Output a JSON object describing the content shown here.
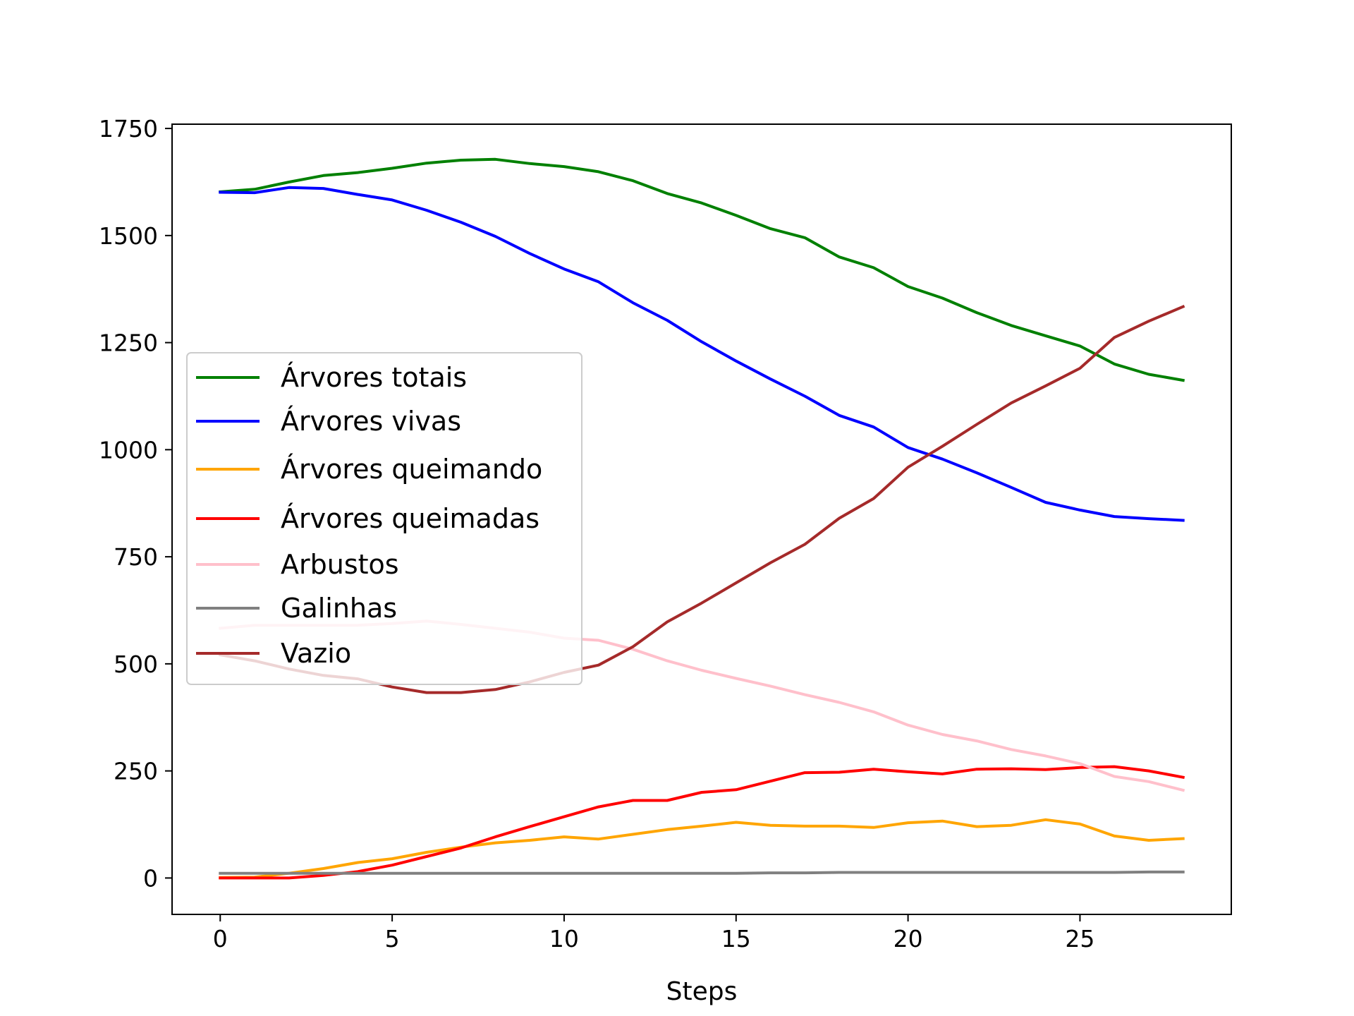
{
  "chart_data": {
    "type": "line",
    "xlabel": "Steps",
    "ylabel": "",
    "xlim": [
      -1.4,
      29.4
    ],
    "ylim": [
      -85,
      1760
    ],
    "xticks": [
      0,
      5,
      10,
      15,
      20,
      25
    ],
    "yticks": [
      0,
      250,
      500,
      750,
      1000,
      1250,
      1500,
      1750
    ],
    "grid": false,
    "legend_position": "center-left",
    "x": [
      0,
      1,
      2,
      3,
      4,
      5,
      6,
      7,
      8,
      9,
      10,
      11,
      12,
      13,
      14,
      15,
      16,
      17,
      18,
      19,
      20,
      21,
      22,
      23,
      24,
      25,
      26,
      27,
      28
    ],
    "series": [
      {
        "name": "Árvores totais",
        "color": "#008000",
        "values": [
          1602,
          1608,
          1625,
          1640,
          1647,
          1657,
          1669,
          1676,
          1678,
          1668,
          1661,
          1649,
          1628,
          1598,
          1576,
          1547,
          1516,
          1495,
          1450,
          1425,
          1381,
          1354,
          1320,
          1290,
          1266,
          1242,
          1200,
          1176,
          1162
        ]
      },
      {
        "name": "Árvores vivas",
        "color": "#0000ff",
        "values": [
          1601,
          1600,
          1612,
          1610,
          1596,
          1583,
          1559,
          1531,
          1498,
          1458,
          1422,
          1392,
          1343,
          1302,
          1252,
          1207,
          1165,
          1125,
          1080,
          1053,
          1005,
          978,
          946,
          912,
          877,
          859,
          844,
          839,
          835
        ]
      },
      {
        "name": "Árvores queimando",
        "color": "#ffa500",
        "values": [
          1,
          2,
          11,
          22,
          36,
          45,
          60,
          72,
          82,
          88,
          96,
          91,
          102,
          113,
          121,
          130,
          123,
          121,
          121,
          118,
          129,
          133,
          120,
          123,
          136,
          126,
          98,
          88,
          92
        ]
      },
      {
        "name": "Árvores queimadas",
        "color": "#ff0000",
        "values": [
          0,
          0,
          0,
          6,
          15,
          30,
          50,
          70,
          96,
          120,
          143,
          166,
          181,
          181,
          200,
          206,
          226,
          246,
          247,
          254,
          248,
          243,
          254,
          255,
          253,
          258,
          260,
          250,
          235
        ]
      },
      {
        "name": "Arbustos",
        "color": "#ffc0cb",
        "values": [
          583,
          590,
          590,
          590,
          590,
          594,
          600,
          592,
          583,
          574,
          560,
          555,
          534,
          507,
          485,
          466,
          448,
          428,
          410,
          388,
          357,
          335,
          320,
          300,
          285,
          267,
          237,
          225,
          205
        ]
      },
      {
        "name": "Galinhas",
        "color": "#808080",
        "values": [
          11,
          11,
          11,
          11,
          11,
          11,
          11,
          11,
          11,
          11,
          11,
          11,
          11,
          11,
          11,
          11,
          12,
          12,
          13,
          13,
          13,
          13,
          13,
          13,
          13,
          13,
          13,
          14,
          14
        ]
      },
      {
        "name": "Vazio",
        "color": "#a52a2a",
        "values": [
          521,
          507,
          488,
          473,
          465,
          446,
          433,
          433,
          440,
          458,
          480,
          497,
          540,
          598,
          642,
          689,
          736,
          779,
          840,
          886,
          959,
          1008,
          1059,
          1109,
          1149,
          1190,
          1262,
          1300,
          1334
        ]
      }
    ]
  }
}
